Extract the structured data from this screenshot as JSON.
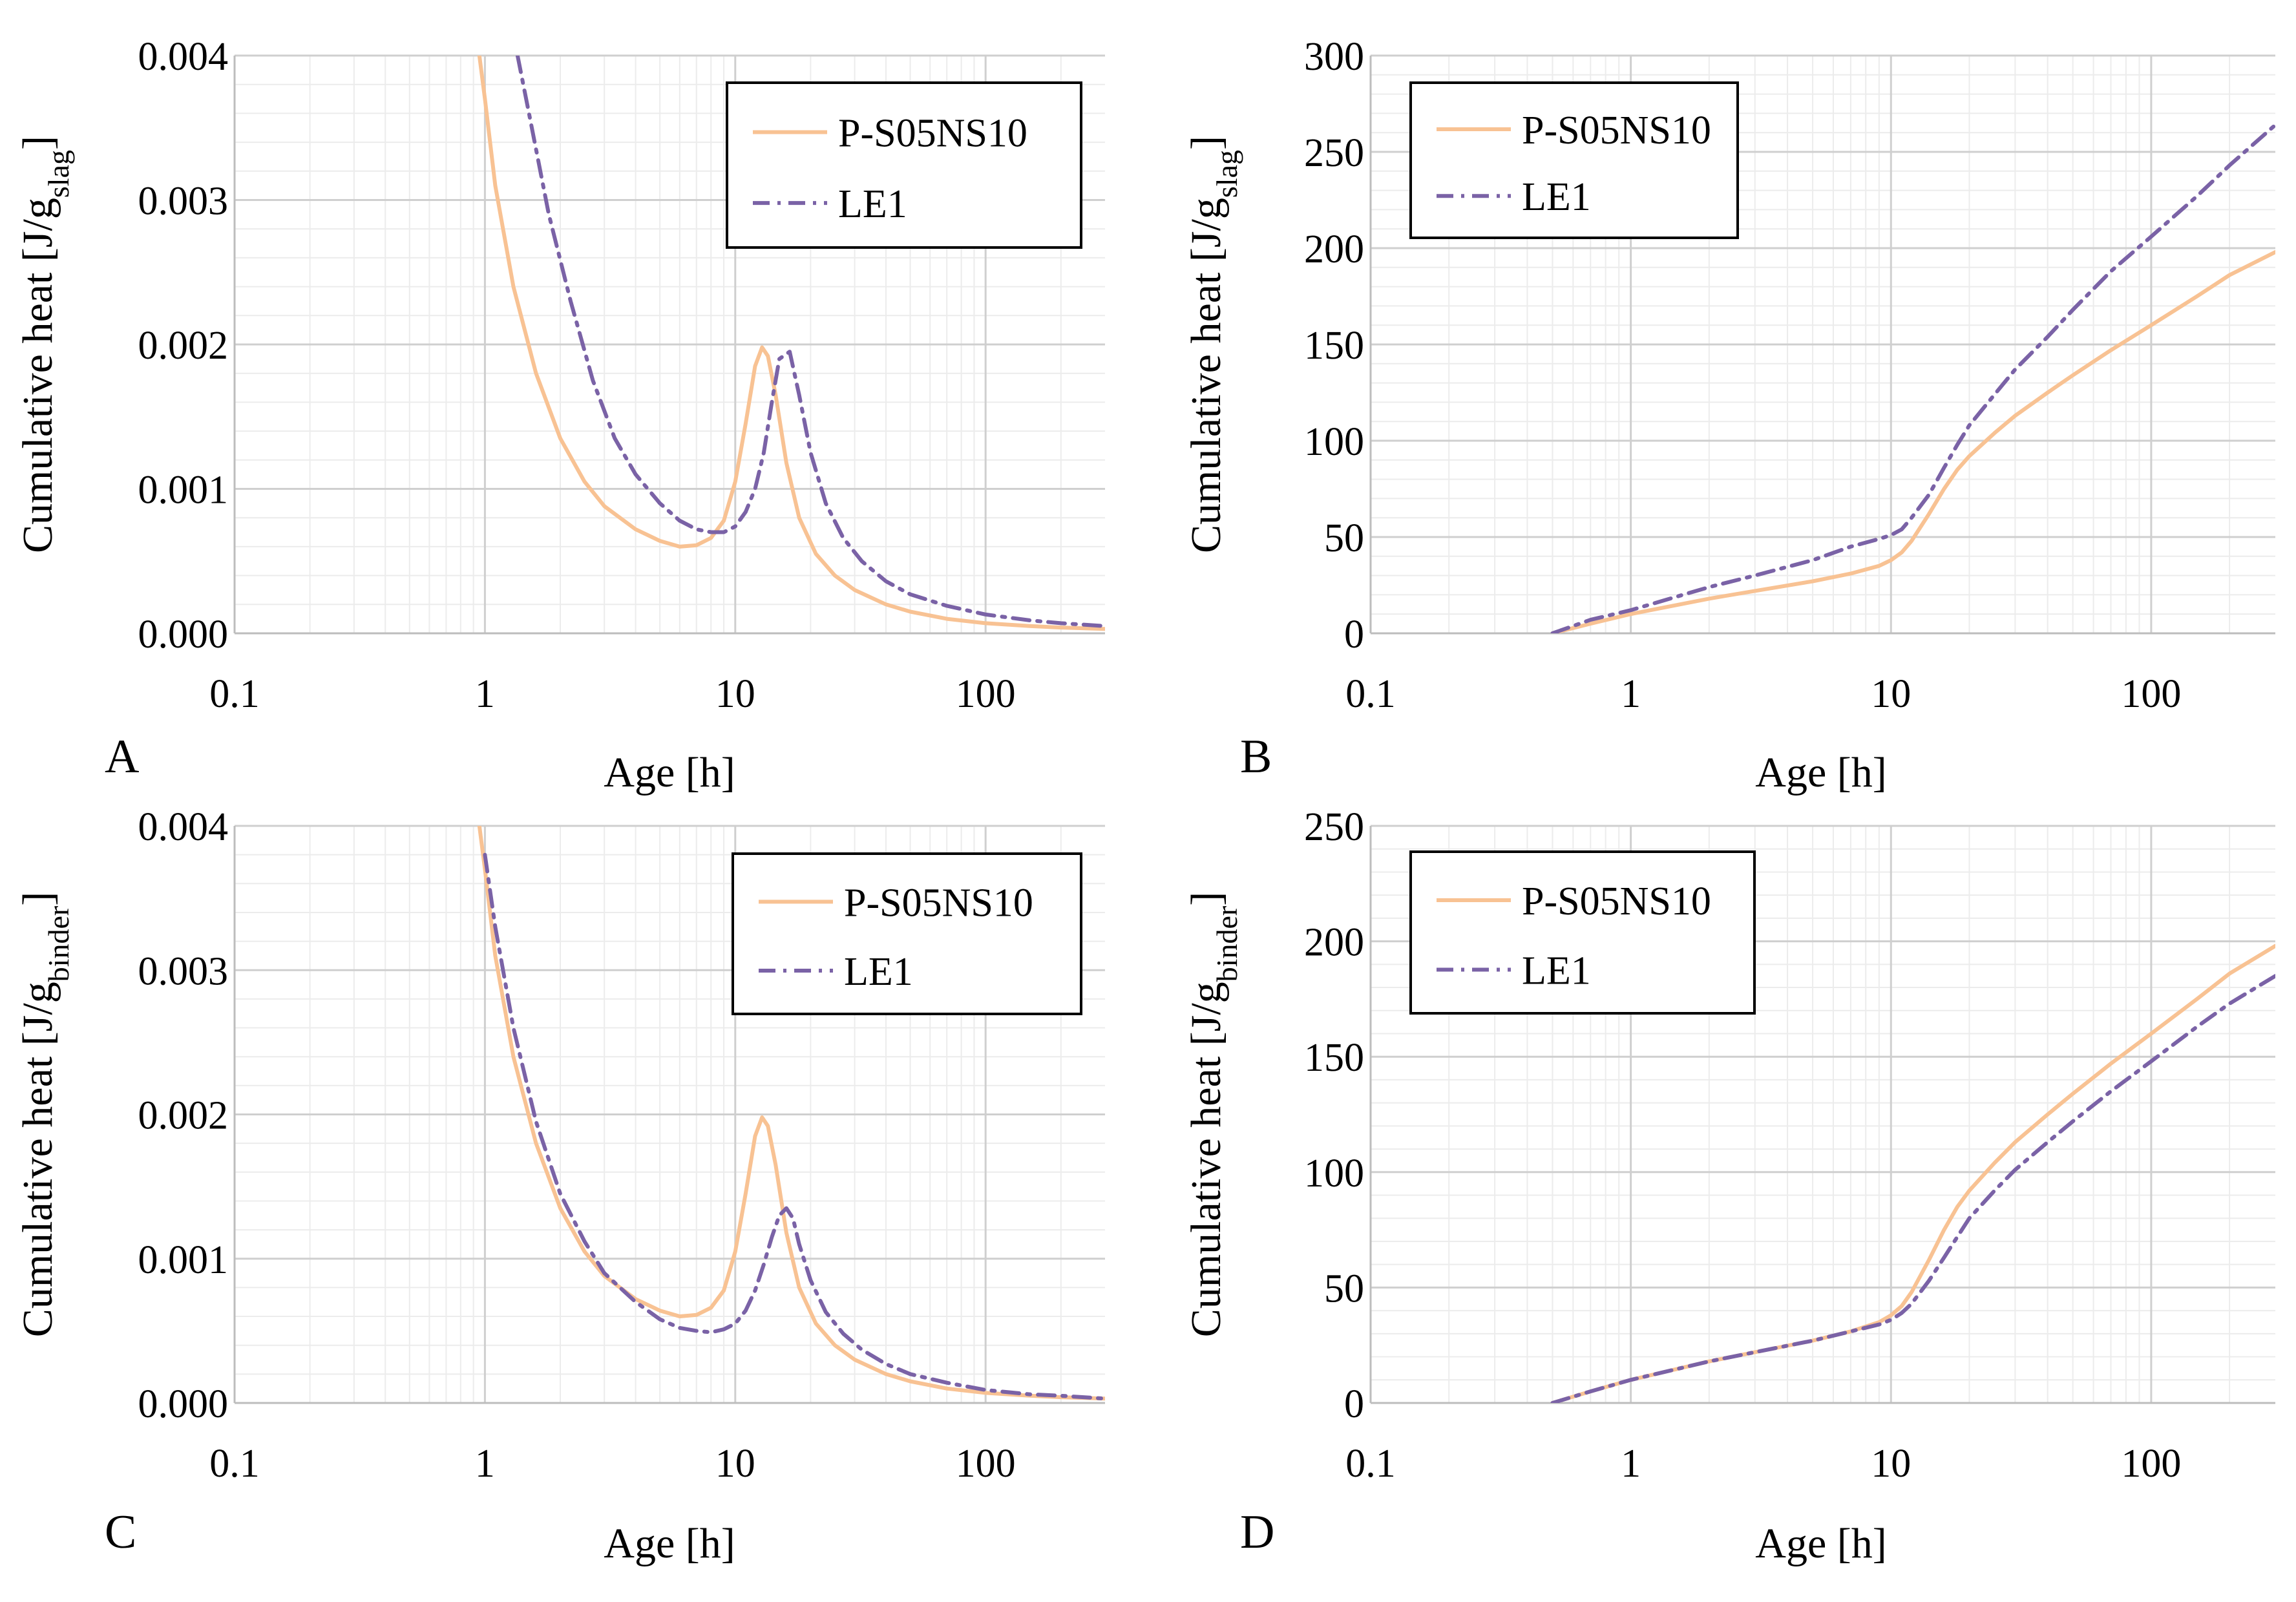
{
  "figure": {
    "legend_labels": [
      "P-S05NS10",
      "LE1"
    ],
    "colors": {
      "p_s05ns10": "#f8c293",
      "le1": "#7a62a6",
      "major_grid": "#cfcfcf",
      "minor_grid": "#ececec"
    }
  },
  "chart_data": [
    {
      "panel": "A",
      "type": "line",
      "xscale": "log",
      "xlim": [
        0.1,
        300
      ],
      "ylim": [
        0,
        0.004
      ],
      "xlabel": "Age [h]",
      "ylabel": {
        "main": "Cumulative heat [J/g",
        "sub": "slag",
        "end": "]"
      },
      "x_ticks": [
        0.1,
        1,
        10,
        100
      ],
      "x_tick_labels": [
        "0.1",
        "1",
        "10",
        "100"
      ],
      "y_ticks": [
        0,
        0.001,
        0.002,
        0.003,
        0.004
      ],
      "y_tick_labels": [
        "0.000",
        "0.001",
        "0.002",
        "0.003",
        "0.004"
      ],
      "legend_position": "top-right",
      "series": [
        {
          "name": "P-S05NS10",
          "style": "solid",
          "color": "#f8c293",
          "x": [
            0.95,
            1.0,
            1.1,
            1.3,
            1.6,
            2.0,
            2.5,
            3.0,
            4.0,
            5.0,
            6.0,
            7.0,
            8.0,
            9.0,
            10.0,
            11.0,
            12.0,
            12.8,
            13.5,
            14.5,
            16.0,
            18.0,
            21.0,
            25.0,
            30.0,
            40.0,
            50.0,
            70.0,
            100.0,
            150.0,
            200.0,
            300.0
          ],
          "y": [
            0.004,
            0.0037,
            0.0031,
            0.0024,
            0.0018,
            0.00135,
            0.00105,
            0.00088,
            0.00072,
            0.00064,
            0.0006,
            0.00061,
            0.00066,
            0.00078,
            0.00105,
            0.00145,
            0.00185,
            0.00198,
            0.00192,
            0.00165,
            0.00118,
            0.0008,
            0.00055,
            0.0004,
            0.0003,
            0.0002,
            0.00015,
            0.0001,
            7e-05,
            5e-05,
            4e-05,
            3e-05
          ]
        },
        {
          "name": "LE1",
          "style": "dashdot",
          "color": "#7a62a6",
          "x": [
            1.35,
            1.5,
            1.8,
            2.2,
            2.7,
            3.3,
            4.0,
            5.0,
            6.0,
            7.0,
            8.0,
            9.0,
            10.0,
            11.0,
            12.0,
            13.0,
            14.0,
            15.0,
            16.5,
            18.0,
            20.0,
            23.0,
            27.0,
            32.0,
            40.0,
            50.0,
            70.0,
            100.0,
            150.0,
            200.0,
            300.0
          ],
          "y": [
            0.004,
            0.0036,
            0.0029,
            0.0023,
            0.00175,
            0.00135,
            0.0011,
            0.0009,
            0.00078,
            0.00072,
            0.0007,
            0.0007,
            0.00074,
            0.00084,
            0.001,
            0.00125,
            0.0016,
            0.0019,
            0.00195,
            0.00165,
            0.00125,
            0.0009,
            0.00066,
            0.0005,
            0.00036,
            0.00027,
            0.00019,
            0.00013,
            9e-05,
            7e-05,
            5e-05
          ]
        }
      ]
    },
    {
      "panel": "B",
      "type": "line",
      "xscale": "log",
      "xlim": [
        0.1,
        300
      ],
      "ylim": [
        0,
        300
      ],
      "xlabel": "Age [h]",
      "ylabel": {
        "main": "Cumulative heat [J/g",
        "sub": "slag",
        "end": "]"
      },
      "x_ticks": [
        0.1,
        1,
        10,
        100
      ],
      "x_tick_labels": [
        "0.1",
        "1",
        "10",
        "100"
      ],
      "y_ticks": [
        0,
        50,
        100,
        150,
        200,
        250,
        300
      ],
      "y_tick_labels": [
        "0",
        "50",
        "100",
        "150",
        "200",
        "250",
        "300"
      ],
      "legend_position": "top-left",
      "series": [
        {
          "name": "P-S05NS10",
          "style": "solid",
          "color": "#f8c293",
          "x": [
            0.5,
            0.7,
            1.0,
            2.0,
            3.0,
            5.0,
            7.0,
            9.0,
            10.0,
            11.0,
            12.0,
            14.0,
            16.0,
            18.0,
            20.0,
            25.0,
            30.0,
            40.0,
            50.0,
            70.0,
            100.0,
            150.0,
            200.0,
            300.0
          ],
          "y": [
            0,
            5,
            10,
            18,
            22,
            27,
            31,
            35,
            38,
            42,
            48,
            62,
            75,
            85,
            92,
            104,
            113,
            125,
            134,
            147,
            160,
            175,
            186,
            198
          ]
        },
        {
          "name": "LE1",
          "style": "dashdot",
          "color": "#7a62a6",
          "x": [
            0.5,
            0.7,
            1.0,
            2.0,
            3.0,
            5.0,
            7.0,
            9.0,
            10.0,
            11.0,
            12.0,
            14.0,
            16.0,
            18.0,
            20.0,
            25.0,
            30.0,
            40.0,
            50.0,
            70.0,
            100.0,
            150.0,
            200.0,
            300.0
          ],
          "y": [
            0,
            7,
            12,
            24,
            30,
            38,
            45,
            49,
            51,
            54,
            60,
            72,
            86,
            98,
            108,
            124,
            137,
            154,
            168,
            188,
            206,
            227,
            243,
            264
          ]
        }
      ]
    },
    {
      "panel": "C",
      "type": "line",
      "xscale": "log",
      "xlim": [
        0.1,
        300
      ],
      "ylim": [
        0,
        0.004
      ],
      "xlabel": "Age [h]",
      "ylabel": {
        "main": "Cumulative heat [J/g",
        "sub": "binder",
        "end": "]"
      },
      "x_ticks": [
        0.1,
        1,
        10,
        100
      ],
      "x_tick_labels": [
        "0.1",
        "1",
        "10",
        "100"
      ],
      "y_ticks": [
        0,
        0.001,
        0.002,
        0.003,
        0.004
      ],
      "y_tick_labels": [
        "0.000",
        "0.001",
        "0.002",
        "0.003",
        "0.004"
      ],
      "legend_position": "top-right",
      "series": [
        {
          "name": "P-S05NS10",
          "style": "solid",
          "color": "#f8c293",
          "x": [
            0.95,
            1.0,
            1.1,
            1.3,
            1.6,
            2.0,
            2.5,
            3.0,
            4.0,
            5.0,
            6.0,
            7.0,
            8.0,
            9.0,
            10.0,
            11.0,
            12.0,
            12.8,
            13.5,
            14.5,
            16.0,
            18.0,
            21.0,
            25.0,
            30.0,
            40.0,
            50.0,
            70.0,
            100.0,
            150.0,
            200.0,
            300.0
          ],
          "y": [
            0.004,
            0.0037,
            0.0031,
            0.0024,
            0.0018,
            0.00135,
            0.00105,
            0.00088,
            0.00072,
            0.00064,
            0.0006,
            0.00061,
            0.00066,
            0.00078,
            0.00105,
            0.00145,
            0.00185,
            0.00198,
            0.00192,
            0.00165,
            0.00118,
            0.0008,
            0.00055,
            0.0004,
            0.0003,
            0.0002,
            0.00015,
            0.0001,
            7e-05,
            5e-05,
            4e-05,
            3e-05
          ]
        },
        {
          "name": "LE1",
          "style": "dashdot",
          "color": "#7a62a6",
          "x": [
            1.0,
            1.1,
            1.3,
            1.6,
            2.0,
            2.5,
            3.0,
            4.0,
            5.0,
            6.0,
            7.0,
            8.0,
            9.0,
            10.0,
            11.0,
            12.0,
            13.0,
            14.0,
            15.0,
            16.0,
            17.0,
            18.0,
            20.0,
            23.0,
            27.0,
            32.0,
            40.0,
            50.0,
            70.0,
            100.0,
            150.0,
            200.0,
            300.0
          ],
          "y": [
            0.0038,
            0.0033,
            0.0026,
            0.00195,
            0.00145,
            0.00112,
            0.0009,
            0.0007,
            0.00058,
            0.00052,
            0.0005,
            0.00049,
            0.00051,
            0.00055,
            0.00064,
            0.00078,
            0.00096,
            0.00115,
            0.0013,
            0.00135,
            0.00128,
            0.0011,
            0.00085,
            0.00063,
            0.00048,
            0.00037,
            0.00027,
            0.0002,
            0.00014,
            9e-05,
            6e-05,
            5e-05,
            3e-05
          ]
        }
      ]
    },
    {
      "panel": "D",
      "type": "line",
      "xscale": "log",
      "xlim": [
        0.1,
        300
      ],
      "ylim": [
        0,
        250
      ],
      "xlabel": "Age [h]",
      "ylabel": {
        "main": "Cumulative heat [J/g",
        "sub": "binder",
        "end": "]"
      },
      "x_ticks": [
        0.1,
        1,
        10,
        100
      ],
      "x_tick_labels": [
        "0.1",
        "1",
        "10",
        "100"
      ],
      "y_ticks": [
        0,
        50,
        100,
        150,
        200,
        250
      ],
      "y_tick_labels": [
        "0",
        "50",
        "100",
        "150",
        "200",
        "250"
      ],
      "legend_position": "top-left",
      "series": [
        {
          "name": "P-S05NS10",
          "style": "solid",
          "color": "#f8c293",
          "x": [
            0.5,
            0.7,
            1.0,
            2.0,
            3.0,
            5.0,
            7.0,
            9.0,
            10.0,
            11.0,
            12.0,
            14.0,
            16.0,
            18.0,
            20.0,
            25.0,
            30.0,
            40.0,
            50.0,
            70.0,
            100.0,
            150.0,
            200.0,
            300.0
          ],
          "y": [
            0,
            5,
            10,
            18,
            22,
            27,
            31,
            35,
            38,
            42,
            48,
            62,
            75,
            85,
            92,
            104,
            113,
            125,
            134,
            147,
            160,
            175,
            186,
            198
          ]
        },
        {
          "name": "LE1",
          "style": "dashdot",
          "color": "#7a62a6",
          "x": [
            0.5,
            0.7,
            1.0,
            2.0,
            3.0,
            5.0,
            7.0,
            9.0,
            10.0,
            11.0,
            12.0,
            14.0,
            16.0,
            18.0,
            20.0,
            25.0,
            30.0,
            40.0,
            50.0,
            70.0,
            100.0,
            150.0,
            200.0,
            300.0
          ],
          "y": [
            0,
            5,
            10,
            18,
            22,
            27,
            31,
            34,
            36,
            39,
            43,
            53,
            63,
            72,
            80,
            92,
            101,
            113,
            122,
            135,
            148,
            163,
            173,
            185
          ]
        }
      ]
    }
  ]
}
